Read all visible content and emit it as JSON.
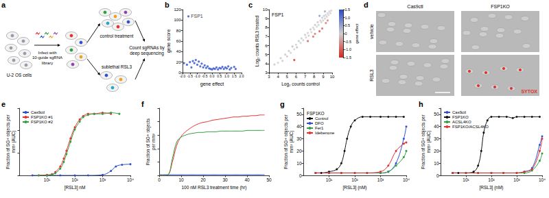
{
  "schematic": {
    "panel": "a",
    "cells": "U-2 OS cells",
    "infection": "Infect with\n10-guide sgRNA\nlibrary",
    "control": "control treatment",
    "treatment": "sublethal RSL3",
    "readout": "Count sgRNAs by\ndeep sequencing"
  },
  "images": {
    "panel": "d",
    "columns": [
      "Cas9ctl",
      "FSP1KO"
    ],
    "rows": [
      "vehicle",
      "RSL3"
    ],
    "stain": "SYTOX"
  },
  "chart_data": [
    {
      "panel": "b",
      "type": "scatter",
      "marker": "circle",
      "grid": false,
      "x_label": "gene effect",
      "y_label": "gene score",
      "xlim": [
        -2,
        2
      ],
      "xticks": [
        {
          "value": -2,
          "label": "-2.0"
        },
        -1.5,
        {
          "value": -1,
          "label": "-1.0"
        },
        -0.5,
        {
          "value": 0,
          "label": "0.0"
        },
        0.5,
        {
          "value": 1,
          "label": "1.0"
        },
        1.5,
        {
          "value": 2,
          "label": "2.0"
        }
      ],
      "ylim": [
        0,
        120
      ],
      "yticks": [
        0,
        20,
        40,
        60,
        80,
        100,
        120
      ],
      "series": [
        {
          "color": "#2d4fd0",
          "x": [
            -1.6,
            -1.9,
            -1.7,
            -1.5,
            -1.4,
            -1.3,
            -1.2,
            -1.1,
            -1.0,
            -0.9,
            -0.8,
            -0.7,
            -0.6,
            -0.5,
            -0.4,
            -0.3,
            -0.2,
            -0.1,
            0.0,
            0.1,
            0.2,
            0.3,
            0.4,
            0.5,
            0.6,
            0.7,
            0.8,
            0.9,
            1.0,
            1.1,
            1.2,
            1.3,
            1.5,
            1.6
          ],
          "values": [
            107,
            18,
            15,
            20,
            10,
            22,
            18,
            24,
            15,
            21,
            12,
            17,
            10,
            14,
            9,
            12,
            8,
            7,
            6,
            8,
            7,
            10,
            6,
            9,
            8,
            11,
            7,
            10,
            8,
            12,
            6,
            9,
            11,
            7
          ],
          "point_labels": [
            "FSP1",
            null,
            null,
            null,
            null,
            null,
            null,
            null,
            null,
            null,
            null,
            null,
            null,
            null,
            null,
            null,
            null,
            null,
            null,
            null,
            null,
            null,
            null,
            null,
            null,
            null,
            null,
            null,
            null,
            null,
            null,
            null,
            null,
            null
          ]
        }
      ]
    },
    {
      "panel": "c",
      "type": "scatter",
      "marker": "circle",
      "grid": false,
      "annotation": "FSP1",
      "x_label": "Log₂ counts control",
      "y_label": "Log₂ counts RSL3 treated",
      "xlim": [
        3,
        10
      ],
      "xticks": [
        3,
        4,
        5,
        6,
        7,
        8,
        9,
        10
      ],
      "ylim": [
        3,
        10
      ],
      "yticks": [
        3,
        4,
        5,
        6,
        7,
        8,
        9,
        10
      ],
      "colorbar": {
        "title": "gene effect",
        "range": [
          -1.5,
          1.5
        ],
        "ticks": [
          -1.5,
          {
            "value": -1,
            "label": "-1.0"
          },
          -0.5,
          0,
          0.5,
          {
            "value": 1,
            "label": "1.0"
          },
          1.5
        ]
      },
      "series": [
        {
          "x": [
            3.6,
            4.0,
            4.3,
            4.5,
            4.8,
            5.0,
            5.2,
            5.4,
            5.6,
            5.8,
            6.0,
            6.1,
            6.3,
            6.5,
            6.6,
            6.8,
            7.0,
            7.1,
            7.3,
            7.4,
            7.6,
            7.7,
            7.9,
            8.0,
            8.1,
            8.3,
            8.4,
            8.5,
            8.7,
            8.8,
            8.9,
            9.0,
            9.1,
            9.2,
            9.3,
            9.4,
            9.5,
            9.6,
            9.7,
            9.8,
            9.9,
            5.8,
            7.3,
            7.9,
            8.1,
            8.6,
            8.9,
            9.3,
            9.5,
            8.6,
            9.2
          ],
          "values": [
            3.9,
            4.1,
            4.6,
            4.3,
            5.0,
            4.8,
            5.4,
            5.2,
            5.9,
            5.6,
            6.1,
            5.8,
            6.5,
            6.3,
            6.8,
            6.6,
            7.2,
            6.9,
            7.4,
            7.1,
            7.8,
            7.5,
            8.0,
            7.8,
            8.3,
            8.1,
            8.6,
            8.3,
            8.8,
            8.6,
            9.1,
            8.8,
            9.3,
            9.0,
            9.4,
            9.2,
            9.6,
            9.4,
            9.8,
            9.6,
            9.9,
            4.4,
            6.5,
            7.0,
            7.3,
            7.6,
            7.9,
            8.5,
            8.8,
            9.3,
            9.8
          ],
          "gene_effect": [
            0.1,
            0,
            0.1,
            -0.1,
            0.1,
            -0.1,
            0.1,
            0,
            0.2,
            0,
            0,
            -0.2,
            0.1,
            0,
            0.1,
            0,
            0.1,
            0,
            0,
            -0.1,
            0.1,
            0,
            0,
            0,
            0.1,
            0,
            0.1,
            0,
            0,
            0,
            0.1,
            0,
            0.1,
            0,
            0,
            0,
            0,
            0,
            0,
            0,
            0,
            -1.6,
            -1.0,
            -0.9,
            -0.8,
            -1.1,
            -1.0,
            -0.8,
            -0.7,
            0.6,
            0.5
          ]
        }
      ]
    },
    {
      "panel": "e",
      "type": "line",
      "log": "x",
      "marker": "circle",
      "grid": false,
      "legend": "top-left",
      "tick_labels": "x",
      "x_label": "[RSL3] nM",
      "y_label": "Fraction of SG+ objects per\nmm² (AUC)",
      "xlim": [
        1,
        10000
      ],
      "xticks": [
        {
          "value": 10,
          "label": "10¹"
        },
        {
          "value": 100,
          "label": "10²"
        },
        {
          "value": 1000,
          "label": "10³"
        },
        {
          "value": 10000,
          "label": "10⁴"
        }
      ],
      "ylim": [
        0,
        60
      ],
      "yticks": [
        0,
        20,
        40,
        60
      ],
      "series": [
        {
          "name": "Cas9ctl",
          "color": "#2d4fd0",
          "x": [
            3,
            10,
            30,
            100,
            300,
            1000,
            2000,
            3000,
            5000,
            10000
          ],
          "values": [
            0,
            0,
            0,
            0,
            0,
            0.5,
            4,
            8,
            9.5,
            10
          ]
        },
        {
          "name": "FSP1KO #1",
          "color": "#e5322d",
          "x": [
            5,
            10,
            15,
            20,
            30,
            40,
            50,
            70,
            100,
            150,
            200,
            300,
            500,
            1000,
            2000
          ],
          "values": [
            0,
            0.5,
            1,
            3,
            8,
            15,
            22,
            33,
            43,
            50,
            53,
            55,
            55,
            56,
            55
          ]
        },
        {
          "name": "FSP1KO #2",
          "color": "#2e9e3e",
          "x": [
            5,
            10,
            15,
            20,
            30,
            40,
            50,
            70,
            100,
            150,
            200,
            300,
            500,
            1000,
            2000,
            4000
          ],
          "values": [
            0,
            0,
            0.5,
            2,
            6,
            12,
            19,
            30,
            41,
            48,
            52,
            54,
            55,
            55,
            56,
            55
          ]
        }
      ]
    },
    {
      "panel": "f",
      "type": "line",
      "marker": "none",
      "grid": false,
      "tick_labels": "x",
      "x_label": "100 nM RSL3 treatment time (hr)",
      "y_label": "Fraction of SG+ objects\nper mm²",
      "xlim": [
        0,
        50
      ],
      "xticks": [
        0,
        10,
        20,
        30,
        40,
        50
      ],
      "ylim": [
        0,
        1
      ],
      "yticks": [
        0,
        0.2,
        0.4,
        0.6,
        0.8,
        1
      ],
      "x": [
        0,
        2,
        4,
        6,
        8,
        10,
        12,
        14,
        16,
        18,
        20,
        22,
        24,
        26,
        28,
        30,
        32,
        34,
        36,
        38,
        40,
        42,
        44,
        46,
        48
      ],
      "series": [
        {
          "color": "#2d4fd0",
          "values": [
            0.01,
            0.01,
            0.01,
            0.01,
            0.01,
            0.01,
            0.01,
            0.01,
            0.01,
            0.01,
            0.01,
            0.01,
            0.01,
            0.01,
            0.01,
            0.01,
            0.01,
            0.01,
            0.01,
            0.01,
            0.01,
            0.01,
            0.01,
            0.01,
            0.01
          ]
        },
        {
          "color": "#e5322d",
          "values": [
            0,
            0,
            0.01,
            0.2,
            0.45,
            0.58,
            0.65,
            0.7,
            0.74,
            0.77,
            0.79,
            0.8,
            0.82,
            0.83,
            0.84,
            0.85,
            0.86,
            0.87,
            0.87,
            0.88,
            0.88,
            0.89,
            0.89,
            0.9,
            0.9
          ]
        },
        {
          "color": "#2e9e3e",
          "values": [
            0,
            0,
            0.01,
            0.25,
            0.5,
            0.57,
            0.6,
            0.62,
            0.63,
            0.64,
            0.64,
            0.65,
            0.65,
            0.65,
            0.66,
            0.66,
            0.66,
            0.66,
            0.66,
            0.66,
            0.67,
            0.67,
            0.67,
            0.67,
            0.67
          ]
        }
      ]
    },
    {
      "panel": "g",
      "type": "line",
      "log": "x",
      "marker": "circle",
      "grid": false,
      "legend": "top-left",
      "legend_title": "FSP1KO",
      "x_label": "[RSL3] (nM)",
      "y_label": "Fraction of SG+ objects per\nmm² (AUC)",
      "xlim": [
        1,
        10000
      ],
      "xticks": [
        {
          "value": 10,
          "label": "10¹"
        },
        {
          "value": 100,
          "label": "10²"
        },
        {
          "value": 1000,
          "label": "10³"
        },
        {
          "value": 10000,
          "label": "10⁴"
        }
      ],
      "ylim": [
        0,
        55
      ],
      "yticks": [
        0,
        10,
        20,
        30,
        40,
        50
      ],
      "series": [
        {
          "name": "Control",
          "color": "#111111",
          "x": [
            3,
            5,
            10,
            20,
            30,
            40,
            50,
            70,
            100,
            200,
            400,
            1000,
            2000,
            4000,
            8000
          ],
          "values": [
            2,
            2,
            3,
            5,
            10,
            20,
            30,
            40,
            45,
            48,
            48,
            48,
            48,
            48,
            48
          ]
        },
        {
          "name": "DFO",
          "color": "#2d4fd0",
          "x": [
            3,
            10,
            30,
            100,
            300,
            1000,
            2000,
            4000,
            8000,
            10000
          ],
          "values": [
            2,
            2,
            2,
            2,
            2,
            2,
            3,
            10,
            30,
            40
          ]
        },
        {
          "name": "Fer1",
          "color": "#2e9e3e",
          "x": [
            3,
            10,
            30,
            100,
            300,
            1000,
            2000,
            4000,
            8000,
            10000
          ],
          "values": [
            2,
            2,
            2,
            2,
            2,
            2,
            3,
            8,
            15,
            20
          ]
        },
        {
          "name": "Idebenone",
          "color": "#e5322d",
          "x": [
            3,
            10,
            30,
            100,
            300,
            1000,
            2000,
            4000,
            8000,
            10000
          ],
          "values": [
            2,
            2,
            2,
            2,
            2,
            3,
            8,
            20,
            26,
            27
          ]
        }
      ]
    },
    {
      "panel": "h",
      "type": "line",
      "log": "x",
      "marker": "circle",
      "grid": false,
      "legend": "top-left",
      "x_label": "[RSL3] (nM)",
      "y_label": "Fraction of SG+ objects per\nmm² (AUC)",
      "xlim": [
        1,
        10000
      ],
      "xticks": [
        {
          "value": 10,
          "label": "10¹"
        },
        {
          "value": 100,
          "label": "10²"
        },
        {
          "value": 1000,
          "label": "10³"
        },
        {
          "value": 10000,
          "label": "10⁴"
        }
      ],
      "ylim": [
        0,
        55
      ],
      "yticks": [
        0,
        10,
        20,
        30,
        40,
        50
      ],
      "series": [
        {
          "name": "Cas9ctl",
          "color": "#2d4fd0",
          "x": [
            3,
            10,
            30,
            100,
            300,
            1000,
            2000,
            4000,
            8000,
            10000
          ],
          "values": [
            2,
            2,
            2,
            2,
            2,
            2,
            3,
            6,
            25,
            32
          ]
        },
        {
          "name": "FSP1KO",
          "color": "#111111",
          "x": [
            3,
            5,
            10,
            20,
            30,
            40,
            50,
            70,
            100,
            200,
            400,
            700,
            1000,
            2000,
            4000,
            8000
          ],
          "values": [
            2,
            2,
            2,
            3,
            8,
            20,
            35,
            45,
            48,
            48,
            48,
            47,
            48,
            48,
            48,
            48
          ]
        },
        {
          "name": "ACSL4KO",
          "color": "#2e9e3e",
          "x": [
            3,
            10,
            30,
            100,
            300,
            1000,
            2000,
            4000,
            8000,
            10000
          ],
          "values": [
            2,
            2,
            2,
            2,
            2,
            2,
            2,
            4,
            12,
            18
          ]
        },
        {
          "name": "FSP1KO/ACSL4KO",
          "color": "#e5322d",
          "x": [
            3,
            10,
            30,
            100,
            300,
            1000,
            2000,
            4000,
            8000,
            10000
          ],
          "values": [
            2,
            2,
            2,
            2,
            2,
            2,
            3,
            5,
            20,
            30
          ]
        }
      ]
    }
  ]
}
